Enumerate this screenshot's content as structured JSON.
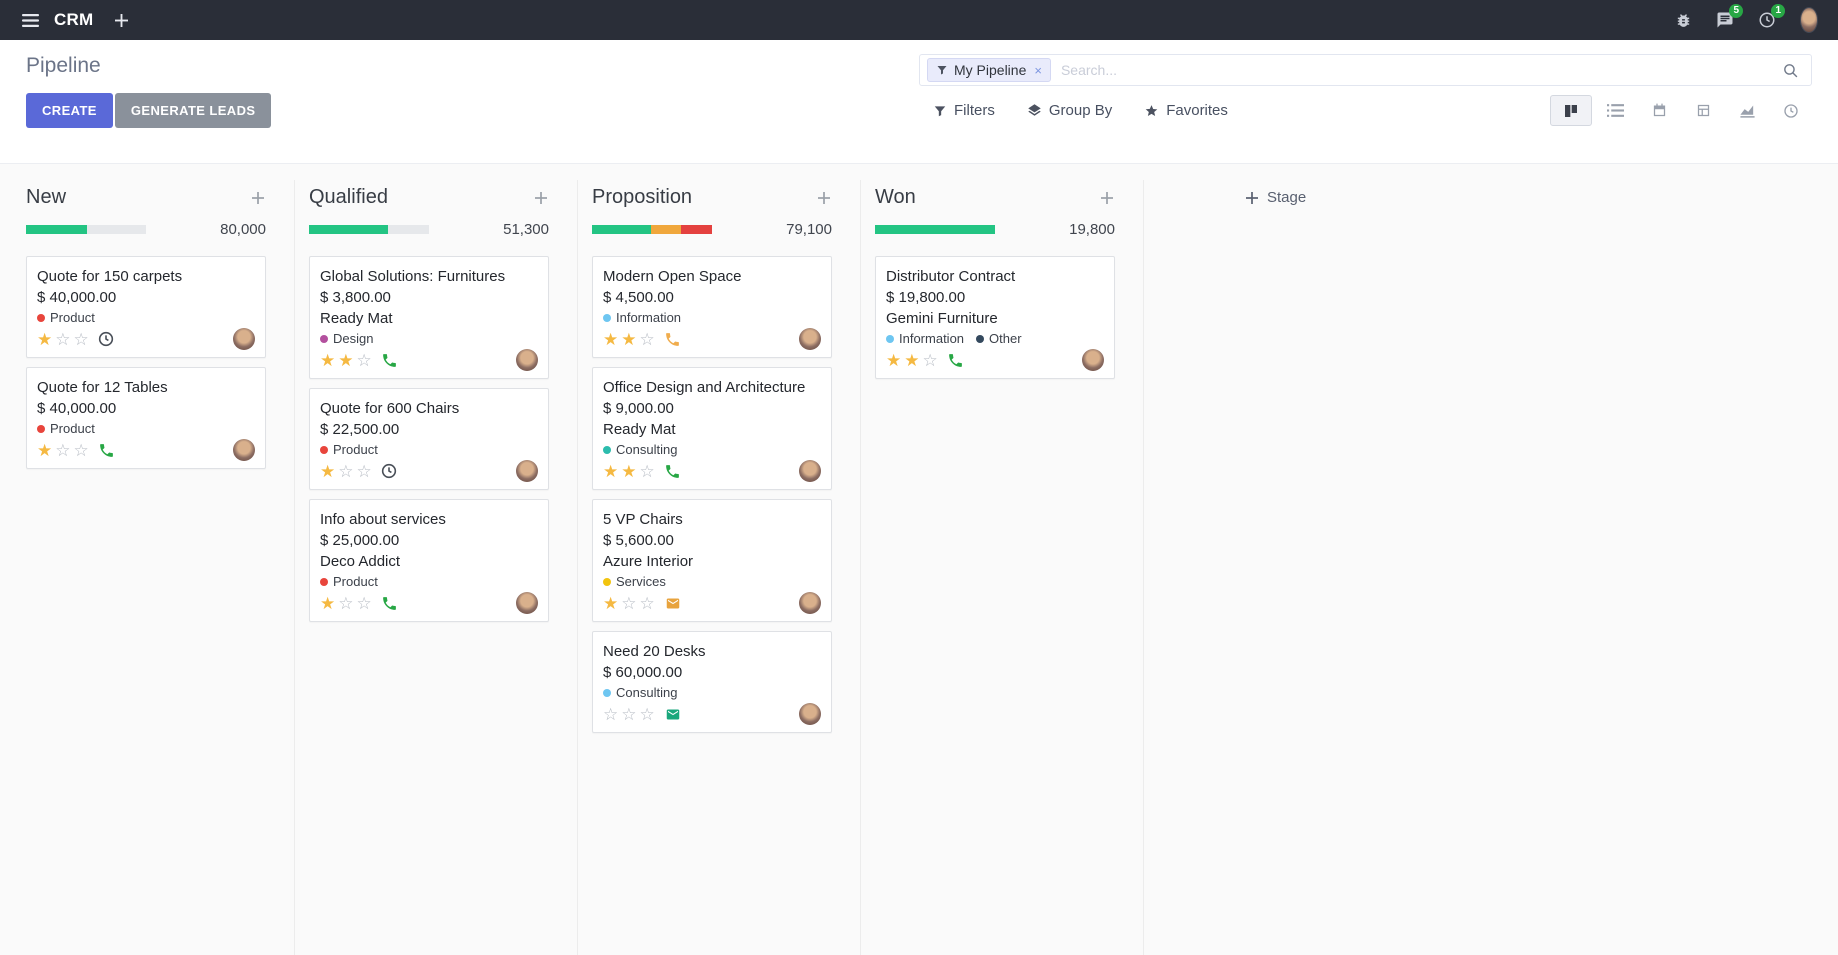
{
  "topbar": {
    "app_name": "CRM",
    "messages_badge": "5",
    "activities_badge": "1"
  },
  "control_panel": {
    "title": "Pipeline",
    "create_label": "CREATE",
    "generate_leads_label": "GENERATE LEADS",
    "search": {
      "facet_label": "My Pipeline",
      "remove_label": "×",
      "placeholder": "Search..."
    },
    "filters_label": "Filters",
    "group_by_label": "Group By",
    "favorites_label": "Favorites"
  },
  "kanban": {
    "add_stage_label": "Stage",
    "columns": [
      {
        "title": "New",
        "total": "80,000",
        "progress": [
          {
            "color": "#23c483",
            "pct": 51
          }
        ],
        "cards": [
          {
            "title": "Quote for 150 carpets",
            "amount": "$ 40,000.00",
            "tags": [
              {
                "label": "Product",
                "color": "#e8453c"
              }
            ],
            "stars": 1,
            "activity": {
              "type": "clock",
              "color": "#494f58"
            }
          },
          {
            "title": "Quote for 12 Tables",
            "amount": "$ 40,000.00",
            "tags": [
              {
                "label": "Product",
                "color": "#e8453c"
              }
            ],
            "stars": 1,
            "activity": {
              "type": "phone",
              "color": "#28a745"
            }
          }
        ]
      },
      {
        "title": "Qualified",
        "total": "51,300",
        "progress": [
          {
            "color": "#23c483",
            "pct": 66
          }
        ],
        "cards": [
          {
            "title": "Global Solutions: Furnitures",
            "amount": "$ 3,800.00",
            "company": "Ready Mat",
            "tags": [
              {
                "label": "Design",
                "color": "#b3509e"
              }
            ],
            "stars": 2,
            "activity": {
              "type": "phone",
              "color": "#28a745"
            }
          },
          {
            "title": "Quote for 600 Chairs",
            "amount": "$ 22,500.00",
            "tags": [
              {
                "label": "Product",
                "color": "#e8453c"
              }
            ],
            "stars": 1,
            "activity": {
              "type": "clock",
              "color": "#494f58"
            }
          },
          {
            "title": "Info about services",
            "amount": "$ 25,000.00",
            "company": "Deco Addict",
            "tags": [
              {
                "label": "Product",
                "color": "#e8453c"
              }
            ],
            "stars": 1,
            "activity": {
              "type": "phone",
              "color": "#28a745"
            }
          }
        ]
      },
      {
        "title": "Proposition",
        "total": "79,100",
        "progress": [
          {
            "color": "#23c483",
            "pct": 49
          },
          {
            "color": "#f0a73c",
            "pct": 25
          },
          {
            "color": "#e4413f",
            "pct": 26
          }
        ],
        "cards": [
          {
            "title": "Modern Open Space",
            "amount": "$ 4,500.00",
            "tags": [
              {
                "label": "Information",
                "color": "#6ec6f1"
              }
            ],
            "stars": 2,
            "activity": {
              "type": "phone",
              "color": "#f0ad4e"
            }
          },
          {
            "title": "Office Design and Architecture",
            "amount": "$ 9,000.00",
            "company": "Ready Mat",
            "tags": [
              {
                "label": "Consulting",
                "color": "#2cbcad"
              }
            ],
            "stars": 2,
            "activity": {
              "type": "phone",
              "color": "#28a745"
            }
          },
          {
            "title": "5 VP Chairs",
            "amount": "$ 5,600.00",
            "company": "Azure Interior",
            "tags": [
              {
                "label": "Services",
                "color": "#f2c40f"
              }
            ],
            "stars": 1,
            "activity": {
              "type": "envelope",
              "color": "#e8a33d"
            }
          },
          {
            "title": "Need 20 Desks",
            "amount": "$ 60,000.00",
            "tags": [
              {
                "label": "Consulting",
                "color": "#6ec6f1"
              }
            ],
            "stars": 0,
            "activity": {
              "type": "envelope",
              "color": "#1aa77c"
            }
          }
        ]
      },
      {
        "title": "Won",
        "total": "19,800",
        "progress": [
          {
            "color": "#23c483",
            "pct": 100
          }
        ],
        "cards": [
          {
            "title": "Distributor Contract",
            "amount": "$ 19,800.00",
            "company": "Gemini Furniture",
            "tags": [
              {
                "label": "Information",
                "color": "#6ec6f1"
              },
              {
                "label": "Other",
                "color": "#34495e"
              }
            ],
            "stars": 2,
            "activity": {
              "type": "phone",
              "color": "#28a745"
            }
          }
        ]
      }
    ]
  },
  "colors": {
    "primary": "#5a69d8",
    "secondary": "#8a919b",
    "topbar": "#2a2e38",
    "badge": "#28a745",
    "star_on": "#f5b942",
    "progress_green": "#23c483",
    "progress_yellow": "#f0a73c",
    "progress_red": "#e4413f"
  }
}
